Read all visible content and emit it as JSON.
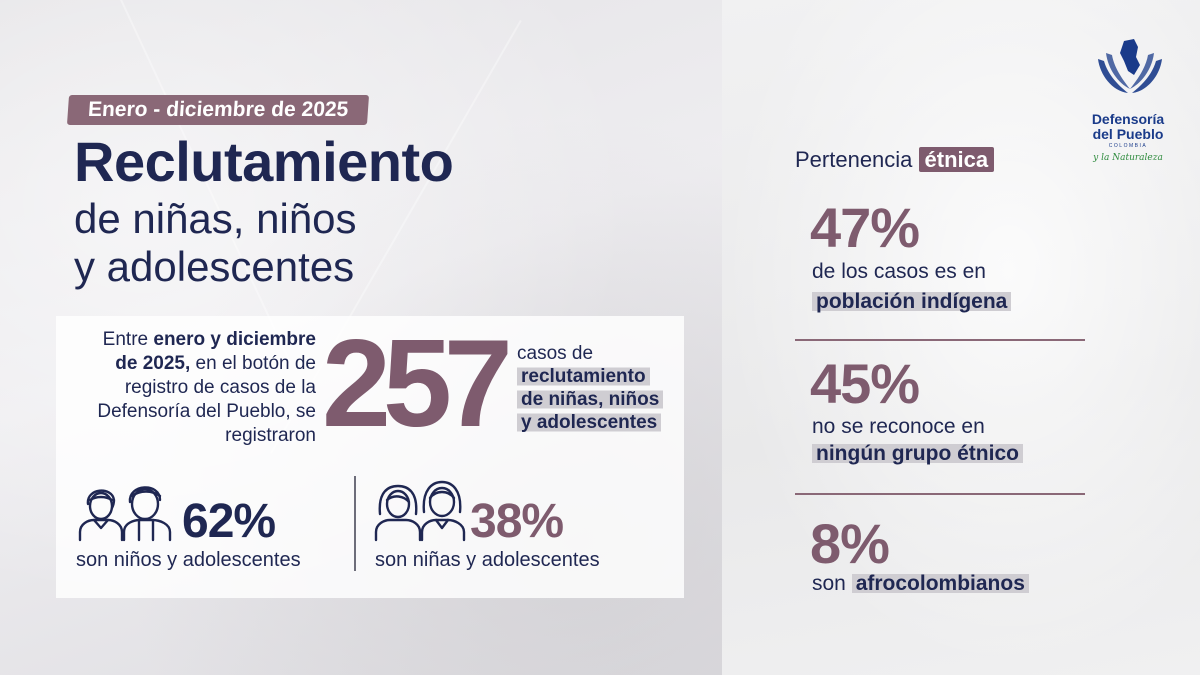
{
  "header": {
    "date_tag": "Enero - diciembre de 2025",
    "title": "Reclutamiento",
    "subtitle_line1": "de niñas, niños",
    "subtitle_line2": "y adolescentes"
  },
  "summary": {
    "intro_prefix": "Entre ",
    "intro_bold": "enero y diciembre de 2025,",
    "intro_rest": " en el botón de registro de casos de la Defensoría del Pueblo, se registraron",
    "total_cases": "257",
    "cases_prefix": "casos de",
    "cases_line1": "reclutamiento",
    "cases_line2": "de niñas, niños",
    "cases_line3": "y adolescentes"
  },
  "gender": {
    "boys_percent": "62%",
    "boys_label": "son niños y adolescentes",
    "girls_percent": "38%",
    "girls_label": "son niñas y adolescentes"
  },
  "ethnic": {
    "title_prefix": "Pertenencia ",
    "title_highlight": "étnica",
    "items": [
      {
        "percent": "47%",
        "line1": "de los casos es en",
        "line2_bold": "población indígena"
      },
      {
        "percent": "45%",
        "line1": "no se reconoce en",
        "line2_bold": "ningún grupo étnico"
      },
      {
        "percent": "8%",
        "line1_prefix": "son ",
        "line1_bold": "afrocolombianos"
      }
    ]
  },
  "logo": {
    "name_line1": "Defensoría",
    "name_line2": "del Pueblo",
    "country": "COLOMBIA",
    "tagline": "y la Naturaleza"
  },
  "colors": {
    "navy": "#1f2752",
    "mauve": "#7e5b6e",
    "logo_blue": "#1a3b8a",
    "logo_green": "#2e8b3d"
  },
  "icons": [
    "boys-icon",
    "girls-icon",
    "hands-icon",
    "colombia-map-icon"
  ]
}
